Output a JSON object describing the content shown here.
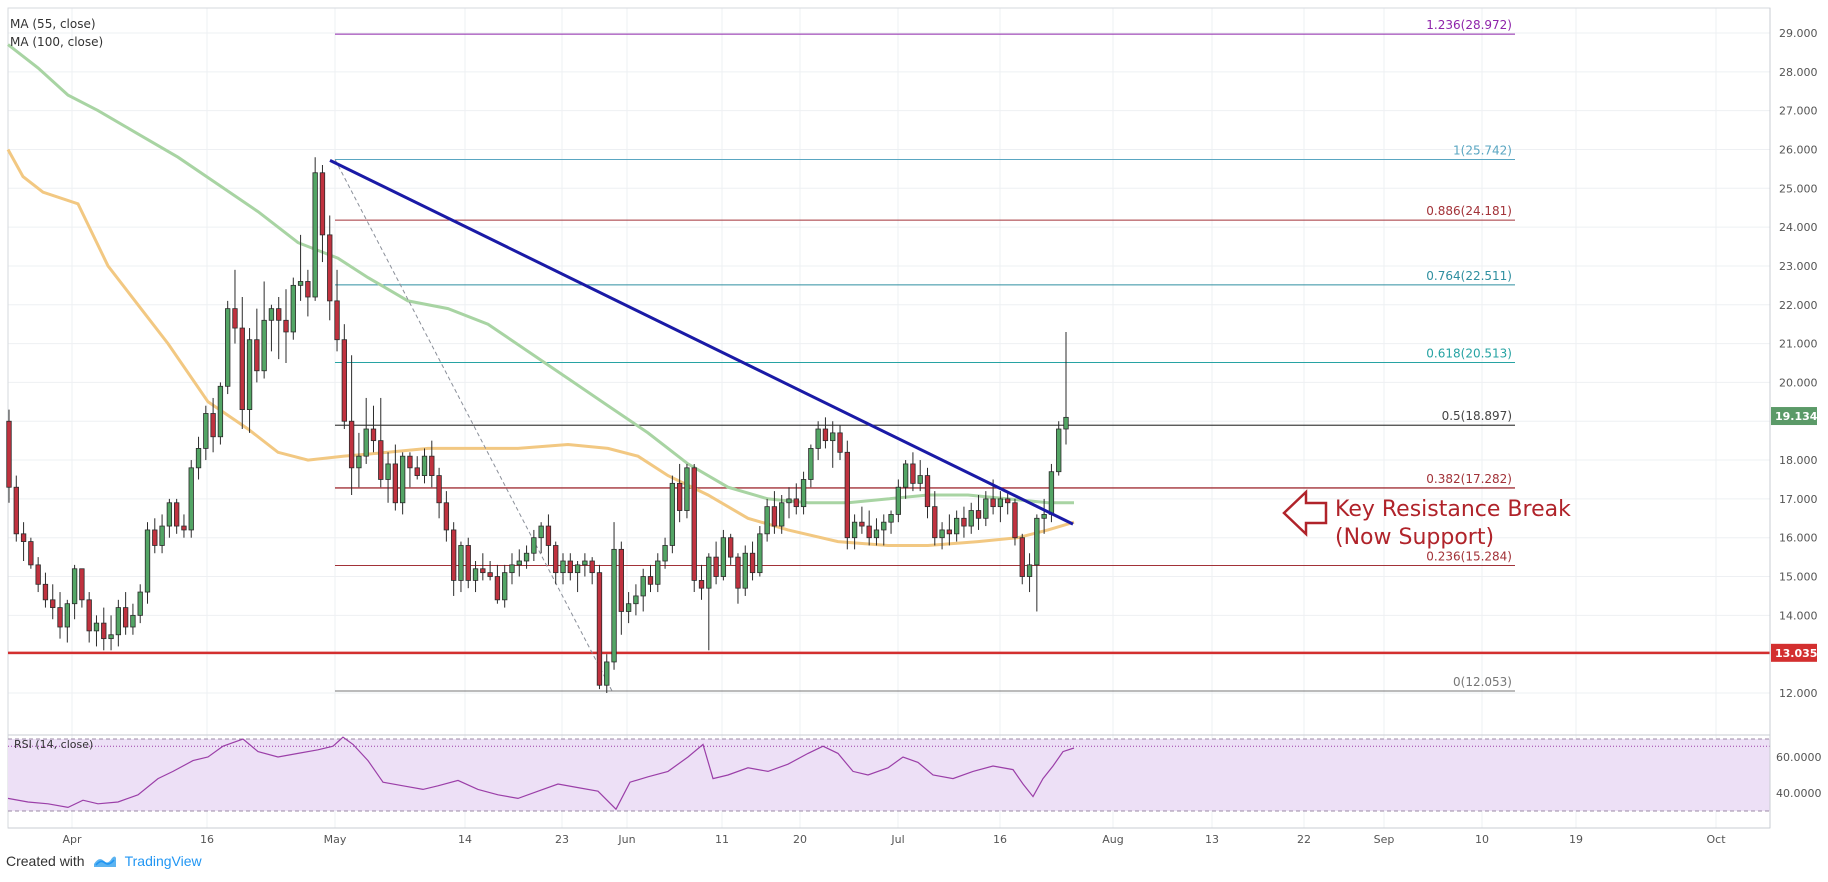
{
  "indicators": {
    "ma55": "MA (55, close)",
    "ma100": "MA (100, close)",
    "rsi": "RSI (14, close)"
  },
  "annotation": {
    "line1": "Key Resistance Break",
    "line2": "(Now Support)"
  },
  "footer": {
    "created_with": "Created with",
    "brand": "TradingView"
  },
  "colors": {
    "bull": "#53a565",
    "bear": "#c0323f",
    "trendline": "#1a1aa6",
    "ma55": "#f2c882",
    "ma100": "#a8d4a3",
    "support": "#d32f2f",
    "rsi_line": "#9b3fa8",
    "rsi_band": "#ede0f6"
  },
  "chart_data": {
    "type": "candlestick",
    "x_ticks": [
      "Apr",
      "16",
      "May",
      "14",
      "23",
      "Jun",
      "11",
      "20",
      "Jul",
      "16",
      "Aug",
      "13",
      "22",
      "Sep",
      "10",
      "19",
      "Oct"
    ],
    "y_ticks": [
      "29.000",
      "28.000",
      "27.000",
      "26.000",
      "25.000",
      "24.000",
      "23.000",
      "22.000",
      "21.000",
      "20.000",
      "19.000",
      "18.000",
      "17.000",
      "16.000",
      "15.000",
      "14.000",
      "13.000",
      "12.000"
    ],
    "y_range": [
      11.6,
      29.7
    ],
    "last_price": "19.134",
    "support_level": {
      "value": 13.035,
      "label": "13.035"
    },
    "fib_levels": [
      {
        "label": "1.236(28.972)",
        "value": 28.972,
        "color": "#8e24aa"
      },
      {
        "label": "1(25.742)",
        "value": 25.742,
        "color": "#5aa6c2"
      },
      {
        "label": "0.886(24.181)",
        "value": 24.181,
        "color": "#a23238"
      },
      {
        "label": "0.764(22.511)",
        "value": 22.511,
        "color": "#2f8fa0"
      },
      {
        "label": "0.618(20.513)",
        "value": 20.513,
        "color": "#27a3a3"
      },
      {
        "label": "0.5(18.897)",
        "value": 18.897,
        "color": "#444444"
      },
      {
        "label": "0.382(17.282)",
        "value": 17.282,
        "color": "#a23238"
      },
      {
        "label": "0.236(15.284)",
        "value": 15.284,
        "color": "#a23238"
      },
      {
        "label": "0(12.053)",
        "value": 12.053,
        "color": "#777777"
      }
    ],
    "trendline": {
      "from": {
        "date": "May 6",
        "value": 25.7
      },
      "to": {
        "date": "Aug 8",
        "value": 16.4
      }
    },
    "ma55": [
      [
        0,
        26.0
      ],
      [
        15,
        25.3
      ],
      [
        35,
        24.9
      ],
      [
        70,
        24.6
      ],
      [
        100,
        23.0
      ],
      [
        130,
        22.0
      ],
      [
        160,
        21.0
      ],
      [
        200,
        19.5
      ],
      [
        240,
        18.8
      ],
      [
        270,
        18.2
      ],
      [
        300,
        18.0
      ],
      [
        335,
        18.1
      ],
      [
        380,
        18.2
      ],
      [
        420,
        18.3
      ],
      [
        460,
        18.3
      ],
      [
        510,
        18.3
      ],
      [
        560,
        18.4
      ],
      [
        600,
        18.3
      ],
      [
        630,
        18.1
      ],
      [
        660,
        17.6
      ],
      [
        700,
        17.1
      ],
      [
        740,
        16.5
      ],
      [
        780,
        16.2
      ],
      [
        830,
        15.9
      ],
      [
        880,
        15.8
      ],
      [
        920,
        15.8
      ],
      [
        970,
        15.9
      ],
      [
        1010,
        16.0
      ],
      [
        1040,
        16.2
      ],
      [
        1066,
        16.4
      ]
    ],
    "ma100": [
      [
        0,
        28.7
      ],
      [
        30,
        28.1
      ],
      [
        60,
        27.4
      ],
      [
        90,
        27.0
      ],
      [
        130,
        26.4
      ],
      [
        170,
        25.8
      ],
      [
        210,
        25.1
      ],
      [
        250,
        24.4
      ],
      [
        290,
        23.6
      ],
      [
        330,
        23.2
      ],
      [
        360,
        22.7
      ],
      [
        400,
        22.1
      ],
      [
        440,
        21.9
      ],
      [
        480,
        21.5
      ],
      [
        520,
        20.8
      ],
      [
        560,
        20.1
      ],
      [
        600,
        19.4
      ],
      [
        640,
        18.7
      ],
      [
        680,
        17.9
      ],
      [
        720,
        17.3
      ],
      [
        760,
        17.0
      ],
      [
        800,
        16.9
      ],
      [
        840,
        16.9
      ],
      [
        880,
        17.0
      ],
      [
        920,
        17.1
      ],
      [
        960,
        17.1
      ],
      [
        1000,
        17.0
      ],
      [
        1040,
        16.9
      ],
      [
        1066,
        16.9
      ]
    ],
    "candles": [
      [
        19.0,
        19.3,
        16.9,
        17.3
      ],
      [
        17.3,
        17.6,
        15.9,
        16.1
      ],
      [
        16.1,
        16.4,
        15.4,
        15.9
      ],
      [
        15.9,
        16.0,
        15.2,
        15.3
      ],
      [
        15.3,
        15.5,
        14.6,
        14.8
      ],
      [
        14.8,
        15.1,
        14.2,
        14.4
      ],
      [
        14.4,
        14.8,
        13.9,
        14.2
      ],
      [
        14.2,
        14.6,
        13.4,
        13.7
      ],
      [
        13.7,
        14.4,
        13.3,
        14.3
      ],
      [
        14.3,
        15.3,
        13.9,
        15.2
      ],
      [
        15.2,
        15.2,
        14.2,
        14.4
      ],
      [
        14.4,
        14.6,
        13.3,
        13.6
      ],
      [
        13.6,
        14.0,
        13.2,
        13.8
      ],
      [
        13.8,
        14.2,
        13.1,
        13.4
      ],
      [
        13.4,
        14.0,
        13.1,
        13.5
      ],
      [
        13.5,
        14.4,
        13.2,
        14.2
      ],
      [
        14.2,
        14.6,
        13.5,
        13.7
      ],
      [
        13.7,
        14.3,
        13.5,
        14.0
      ],
      [
        14.0,
        14.8,
        13.8,
        14.6
      ],
      [
        14.6,
        16.4,
        14.3,
        16.2
      ],
      [
        16.2,
        16.5,
        15.6,
        15.8
      ],
      [
        15.8,
        16.6,
        15.6,
        16.3
      ],
      [
        16.3,
        17.0,
        16.0,
        16.9
      ],
      [
        16.9,
        17.0,
        16.1,
        16.3
      ],
      [
        16.3,
        16.6,
        16.0,
        16.2
      ],
      [
        16.2,
        18.0,
        16.0,
        17.8
      ],
      [
        17.8,
        18.6,
        17.5,
        18.3
      ],
      [
        18.3,
        19.4,
        18.0,
        19.2
      ],
      [
        19.2,
        19.6,
        18.2,
        18.6
      ],
      [
        18.6,
        20.0,
        18.4,
        19.9
      ],
      [
        19.9,
        22.1,
        19.7,
        21.9
      ],
      [
        21.9,
        22.9,
        21.0,
        21.4
      ],
      [
        21.4,
        22.2,
        18.8,
        19.3
      ],
      [
        19.3,
        21.4,
        18.7,
        21.1
      ],
      [
        21.1,
        21.9,
        20.0,
        20.3
      ],
      [
        20.3,
        22.6,
        20.1,
        21.6
      ],
      [
        21.6,
        22.0,
        20.8,
        21.9
      ],
      [
        21.9,
        22.2,
        20.6,
        21.6
      ],
      [
        21.6,
        22.4,
        20.5,
        21.3
      ],
      [
        21.3,
        22.7,
        21.1,
        22.5
      ],
      [
        22.5,
        23.8,
        22.1,
        22.6
      ],
      [
        22.6,
        22.9,
        21.7,
        22.2
      ],
      [
        22.2,
        25.8,
        22.1,
        25.4
      ],
      [
        25.4,
        25.6,
        23.1,
        23.8
      ],
      [
        23.8,
        24.3,
        21.6,
        22.1
      ],
      [
        22.1,
        22.9,
        20.8,
        21.1
      ],
      [
        21.1,
        21.5,
        18.8,
        19.0
      ],
      [
        19.0,
        20.7,
        17.1,
        17.8
      ],
      [
        17.8,
        18.7,
        17.3,
        18.1
      ],
      [
        18.1,
        19.6,
        17.9,
        18.8
      ],
      [
        18.8,
        19.4,
        18.2,
        18.5
      ],
      [
        18.5,
        19.6,
        17.3,
        17.5
      ],
      [
        17.5,
        18.2,
        16.9,
        17.9
      ],
      [
        17.9,
        18.4,
        16.7,
        16.9
      ],
      [
        16.9,
        18.2,
        16.6,
        18.1
      ],
      [
        18.1,
        18.2,
        17.3,
        17.8
      ],
      [
        17.8,
        18.1,
        17.5,
        17.6
      ],
      [
        17.6,
        18.3,
        17.4,
        18.1
      ],
      [
        18.1,
        18.5,
        17.3,
        17.6
      ],
      [
        17.6,
        17.8,
        16.5,
        16.9
      ],
      [
        16.9,
        17.2,
        15.9,
        16.2
      ],
      [
        16.2,
        16.4,
        14.5,
        14.9
      ],
      [
        14.9,
        15.9,
        14.6,
        15.8
      ],
      [
        15.8,
        16.0,
        14.7,
        14.9
      ],
      [
        14.9,
        15.4,
        14.6,
        15.2
      ],
      [
        15.2,
        15.6,
        14.9,
        15.1
      ],
      [
        15.1,
        15.4,
        14.9,
        15.0
      ],
      [
        15.0,
        15.3,
        14.3,
        14.4
      ],
      [
        14.4,
        15.3,
        14.2,
        15.1
      ],
      [
        15.1,
        15.6,
        14.8,
        15.3
      ],
      [
        15.3,
        15.7,
        15.0,
        15.4
      ],
      [
        15.4,
        15.8,
        15.2,
        15.6
      ],
      [
        15.6,
        16.2,
        15.4,
        16.0
      ],
      [
        16.0,
        16.4,
        15.6,
        16.3
      ],
      [
        16.3,
        16.6,
        15.3,
        15.8
      ],
      [
        15.8,
        15.9,
        14.8,
        15.1
      ],
      [
        15.1,
        15.6,
        14.8,
        15.4
      ],
      [
        15.4,
        15.6,
        14.9,
        15.1
      ],
      [
        15.1,
        15.4,
        14.6,
        15.3
      ],
      [
        15.3,
        15.6,
        15.0,
        15.4
      ],
      [
        15.4,
        15.5,
        14.8,
        15.1
      ],
      [
        15.1,
        15.3,
        12.1,
        12.2
      ],
      [
        12.2,
        13.0,
        12.0,
        12.8
      ],
      [
        12.8,
        16.4,
        12.6,
        15.7
      ],
      [
        15.7,
        15.9,
        13.5,
        14.1
      ],
      [
        14.1,
        14.6,
        13.8,
        14.3
      ],
      [
        14.3,
        14.8,
        14.0,
        14.5
      ],
      [
        14.5,
        15.2,
        14.1,
        15.0
      ],
      [
        15.0,
        15.3,
        14.6,
        14.8
      ],
      [
        14.8,
        15.6,
        14.6,
        15.4
      ],
      [
        15.4,
        16.0,
        15.2,
        15.8
      ],
      [
        15.8,
        17.6,
        15.6,
        17.4
      ],
      [
        17.4,
        17.9,
        16.4,
        16.7
      ],
      [
        16.7,
        17.9,
        16.5,
        17.8
      ],
      [
        17.8,
        17.9,
        14.6,
        14.9
      ],
      [
        14.9,
        15.3,
        14.4,
        14.7
      ],
      [
        14.7,
        15.6,
        13.1,
        15.5
      ],
      [
        15.5,
        15.9,
        14.8,
        15.0
      ],
      [
        15.0,
        16.2,
        14.9,
        16.0
      ],
      [
        16.0,
        16.1,
        15.3,
        15.5
      ],
      [
        15.5,
        15.6,
        14.3,
        14.7
      ],
      [
        14.7,
        15.8,
        14.5,
        15.6
      ],
      [
        15.6,
        15.9,
        14.9,
        15.1
      ],
      [
        15.1,
        16.3,
        15.0,
        16.1
      ],
      [
        16.1,
        17.0,
        15.9,
        16.8
      ],
      [
        16.8,
        17.2,
        16.1,
        16.3
      ],
      [
        16.3,
        17.1,
        16.1,
        16.9
      ],
      [
        16.9,
        17.3,
        16.5,
        17.0
      ],
      [
        17.0,
        17.4,
        16.6,
        16.8
      ],
      [
        16.8,
        17.7,
        16.6,
        17.5
      ],
      [
        17.5,
        18.4,
        17.3,
        18.3
      ],
      [
        18.3,
        19.0,
        18.0,
        18.8
      ],
      [
        18.8,
        19.1,
        18.3,
        18.5
      ],
      [
        18.5,
        19.0,
        17.8,
        18.7
      ],
      [
        18.7,
        18.9,
        18.0,
        18.2
      ],
      [
        18.2,
        18.5,
        15.7,
        16.0
      ],
      [
        16.0,
        16.6,
        15.7,
        16.4
      ],
      [
        16.4,
        16.8,
        16.1,
        16.3
      ],
      [
        16.3,
        16.7,
        15.8,
        16.0
      ],
      [
        16.0,
        16.5,
        15.8,
        16.2
      ],
      [
        16.2,
        16.6,
        15.8,
        16.4
      ],
      [
        16.4,
        16.7,
        16.1,
        16.6
      ],
      [
        16.6,
        17.5,
        16.4,
        17.3
      ],
      [
        17.3,
        18.0,
        17.0,
        17.9
      ],
      [
        17.9,
        18.2,
        17.2,
        17.4
      ],
      [
        17.4,
        18.0,
        17.2,
        17.6
      ],
      [
        17.6,
        17.8,
        16.5,
        16.8
      ],
      [
        16.8,
        17.2,
        15.8,
        16.0
      ],
      [
        16.0,
        16.4,
        15.7,
        16.2
      ],
      [
        16.2,
        16.6,
        15.8,
        16.1
      ],
      [
        16.1,
        16.7,
        15.9,
        16.5
      ],
      [
        16.5,
        16.8,
        16.0,
        16.3
      ],
      [
        16.3,
        16.9,
        16.1,
        16.7
      ],
      [
        16.7,
        17.1,
        16.2,
        16.5
      ],
      [
        16.5,
        17.2,
        16.3,
        17.0
      ],
      [
        17.0,
        17.5,
        16.6,
        16.8
      ],
      [
        16.8,
        17.2,
        16.4,
        17.0
      ],
      [
        17.0,
        17.2,
        16.6,
        16.9
      ],
      [
        16.9,
        17.0,
        15.8,
        16.0
      ],
      [
        16.0,
        16.1,
        14.8,
        15.0
      ],
      [
        15.0,
        15.6,
        14.6,
        15.3
      ],
      [
        15.3,
        16.6,
        14.1,
        16.5
      ],
      [
        16.5,
        17.0,
        16.1,
        16.6
      ],
      [
        16.6,
        17.9,
        16.4,
        17.7
      ],
      [
        17.7,
        19.0,
        17.6,
        18.8
      ],
      [
        18.8,
        21.3,
        18.4,
        19.1
      ]
    ],
    "rsi": {
      "upper": 70,
      "lower": 30,
      "y_ticks": [
        "60.0000",
        "40.0000"
      ],
      "values": [
        [
          0,
          37
        ],
        [
          20,
          35
        ],
        [
          40,
          34
        ],
        [
          60,
          32
        ],
        [
          75,
          36
        ],
        [
          90,
          34
        ],
        [
          110,
          35
        ],
        [
          130,
          39
        ],
        [
          150,
          48
        ],
        [
          165,
          52
        ],
        [
          185,
          58
        ],
        [
          200,
          60
        ],
        [
          215,
          66
        ],
        [
          235,
          70
        ],
        [
          250,
          63
        ],
        [
          270,
          60
        ],
        [
          290,
          62
        ],
        [
          310,
          64
        ],
        [
          325,
          66
        ],
        [
          335,
          71
        ],
        [
          345,
          67
        ],
        [
          360,
          58
        ],
        [
          375,
          46
        ],
        [
          395,
          44
        ],
        [
          415,
          42
        ],
        [
          430,
          44
        ],
        [
          450,
          47
        ],
        [
          470,
          42
        ],
        [
          490,
          39
        ],
        [
          510,
          37
        ],
        [
          530,
          41
        ],
        [
          550,
          45
        ],
        [
          570,
          43
        ],
        [
          590,
          41
        ],
        [
          608,
          31
        ],
        [
          622,
          46
        ],
        [
          640,
          49
        ],
        [
          660,
          52
        ],
        [
          680,
          60
        ],
        [
          695,
          67
        ],
        [
          705,
          48
        ],
        [
          720,
          50
        ],
        [
          740,
          54
        ],
        [
          760,
          52
        ],
        [
          780,
          56
        ],
        [
          800,
          62
        ],
        [
          815,
          66
        ],
        [
          830,
          62
        ],
        [
          845,
          52
        ],
        [
          860,
          50
        ],
        [
          880,
          54
        ],
        [
          895,
          60
        ],
        [
          910,
          57
        ],
        [
          925,
          50
        ],
        [
          945,
          48
        ],
        [
          965,
          52
        ],
        [
          985,
          55
        ],
        [
          1005,
          53
        ],
        [
          1015,
          45
        ],
        [
          1025,
          38
        ],
        [
          1035,
          48
        ],
        [
          1045,
          55
        ],
        [
          1055,
          63
        ],
        [
          1066,
          65
        ]
      ]
    }
  }
}
